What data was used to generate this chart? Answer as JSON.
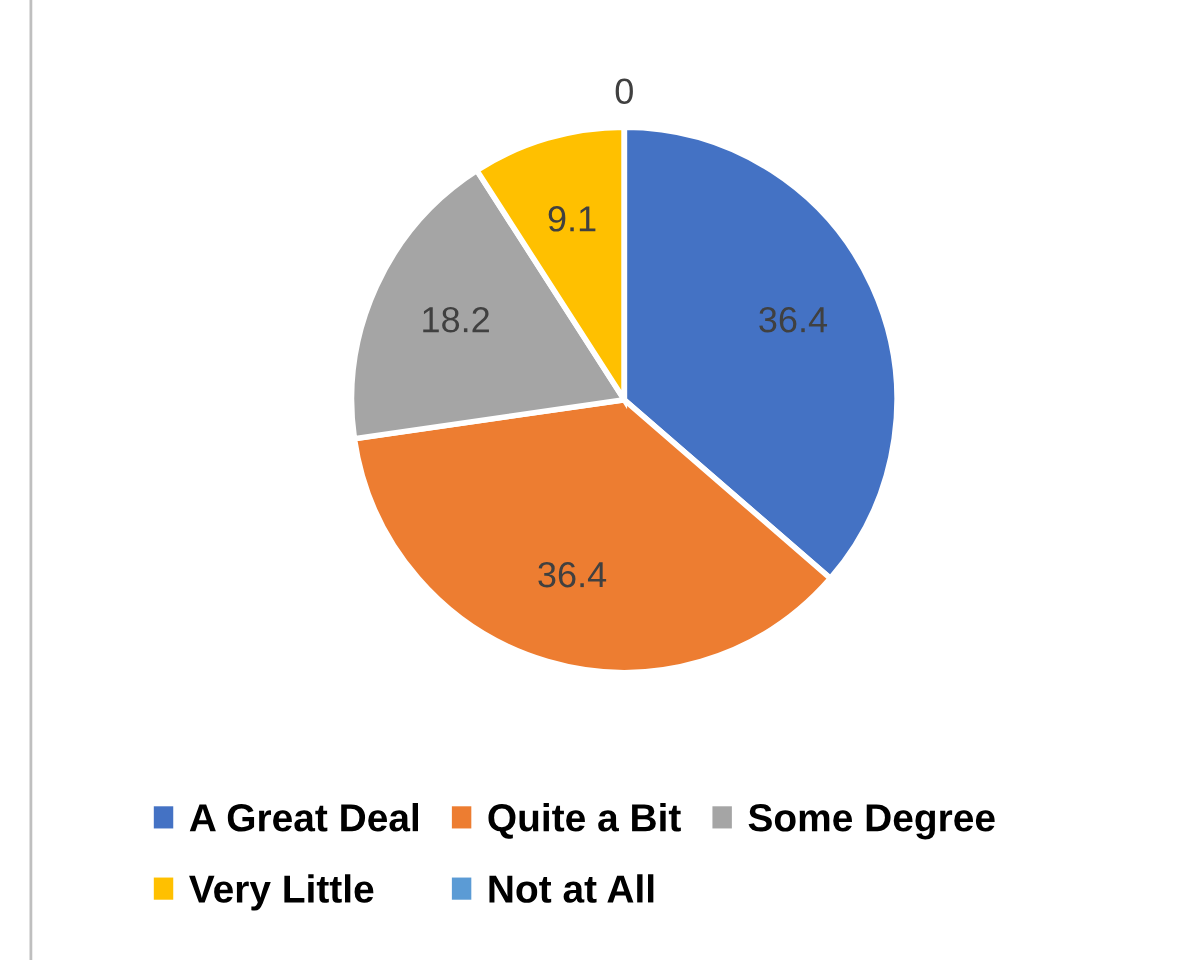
{
  "chart_data": {
    "type": "pie",
    "categories": [
      "A Great Deal",
      "Quite a Bit",
      "Some Degree",
      "Very Little",
      "Not at All"
    ],
    "values": [
      36.4,
      36.4,
      18.2,
      9.1,
      0
    ],
    "colors": [
      "#4472c4",
      "#ed7d31",
      "#a5a5a5",
      "#ffc000",
      "#5b9bd5"
    ],
    "value_labels": [
      "36.4",
      "36.4",
      "18.2",
      "9.1",
      "0"
    ],
    "legend": "bottom"
  }
}
